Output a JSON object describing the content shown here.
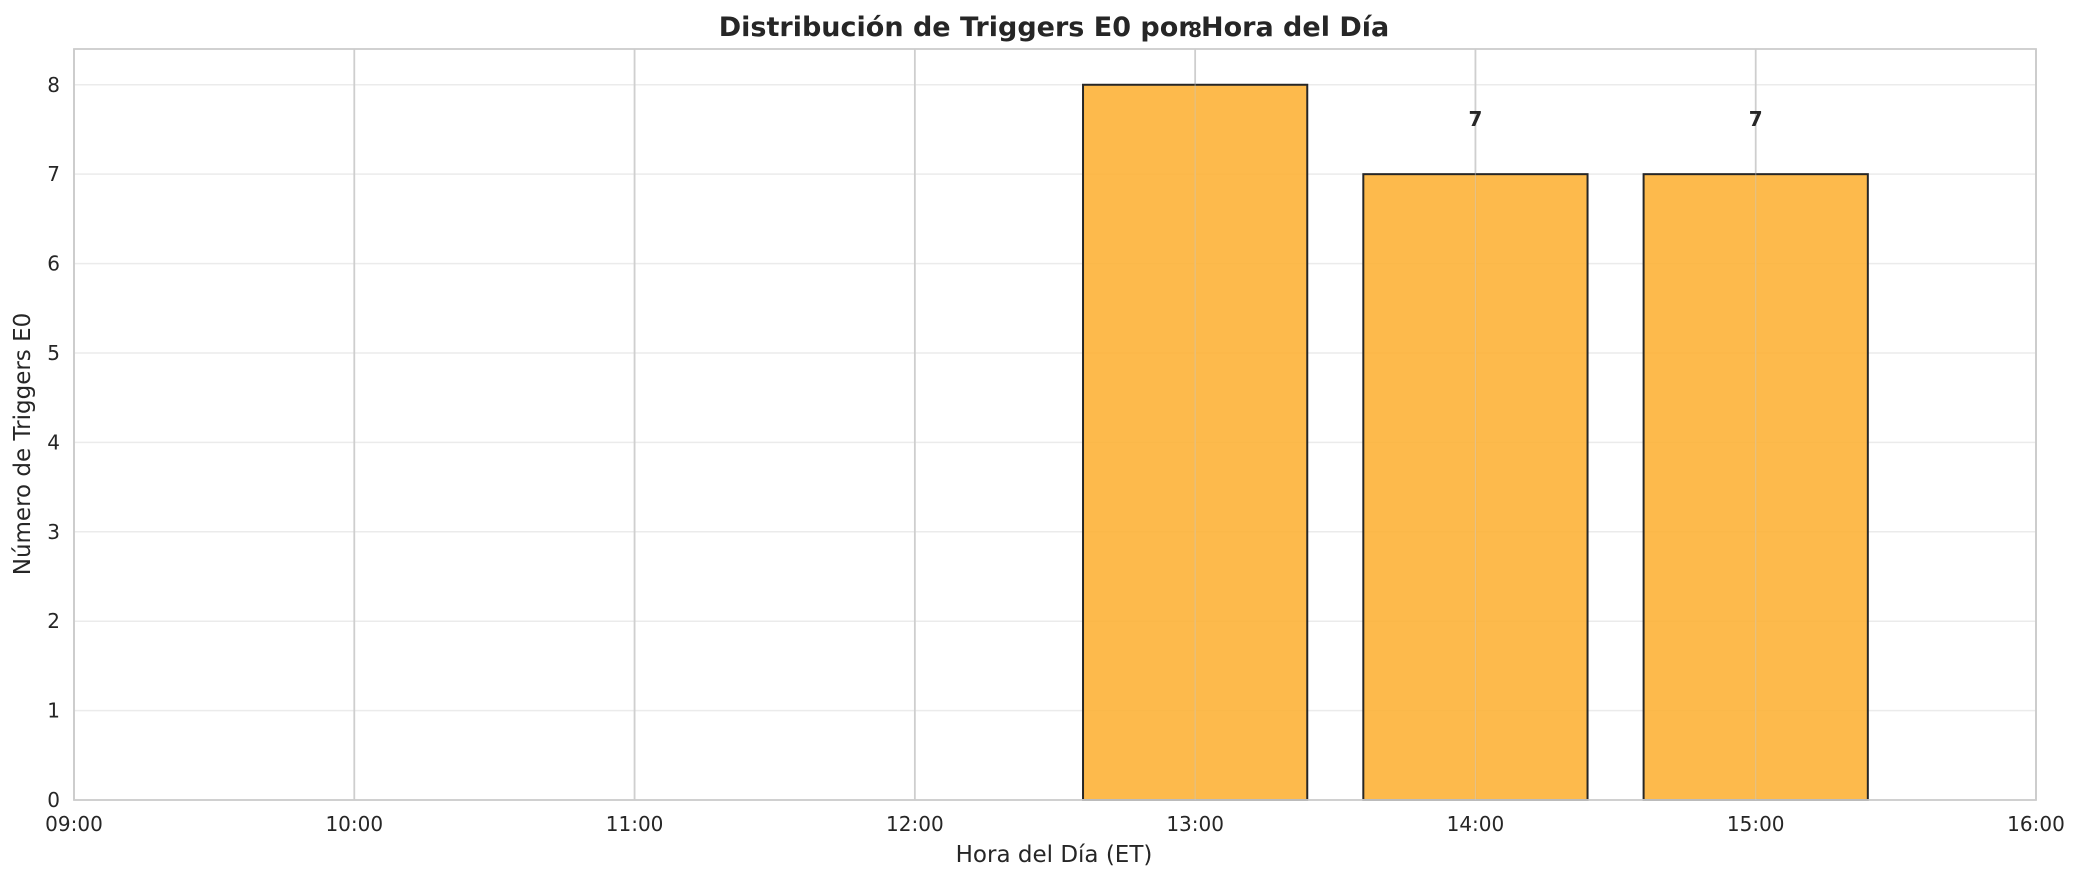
{
  "chart_data": {
    "type": "bar",
    "title": "Distribución de Triggers E0 por Hora del Día",
    "xlabel": "Hora del Día (ET)",
    "ylabel": "Número de Triggers E0",
    "x_range": [
      "09:00",
      "16:00"
    ],
    "x_ticks": [
      "09:00",
      "10:00",
      "11:00",
      "12:00",
      "13:00",
      "14:00",
      "15:00",
      "16:00"
    ],
    "categories": [
      "13:00",
      "14:00",
      "15:00"
    ],
    "values": [
      8,
      7,
      7
    ],
    "data_labels": [
      "8",
      "7",
      "7"
    ],
    "ylim": [
      0,
      8.4
    ],
    "y_ticks": [
      0,
      1,
      2,
      3,
      4,
      5,
      6,
      7,
      8
    ],
    "y_tick_labels": [
      "0",
      "1",
      "2",
      "3",
      "4",
      "5",
      "6",
      "7",
      "8"
    ],
    "bar_color": "#fdb338",
    "bar_edge_color": "#262626",
    "grid": true
  }
}
